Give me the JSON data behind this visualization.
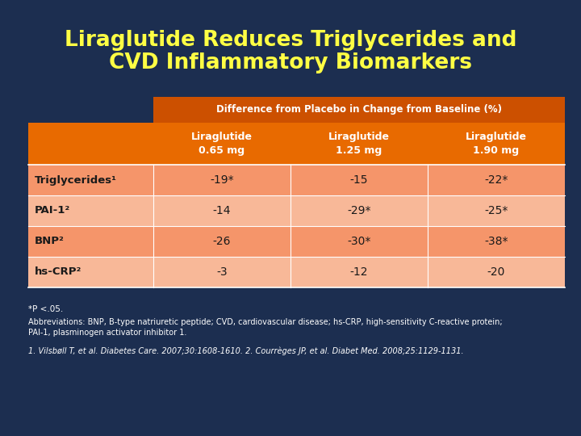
{
  "title_line1": "Liraglutide Reduces Triglycerides and",
  "title_line2": "CVD Inflammatory Biomarkers",
  "title_color": "#FFFF44",
  "bg_color": "#1C2E50",
  "subtitle": "Difference from Placebo in Change from Baseline (%)",
  "col_headers": [
    "Liraglutide\n0.65 mg",
    "Liraglutide\n1.25 mg",
    "Liraglutide\n1.90 mg"
  ],
  "row_labels": [
    "Triglycerides¹",
    "PAI-1²",
    "BNP²",
    "hs-CRP²"
  ],
  "data": [
    [
      "-19*",
      "-15",
      "-22*"
    ],
    [
      "-14",
      "-29*",
      "-25*"
    ],
    [
      "-26",
      "-30*",
      "-38*"
    ],
    [
      "-3",
      "-12",
      "-20"
    ]
  ],
  "header_bg": "#E86A00",
  "row_label_bg_odd": "#F5956A",
  "row_label_bg_even": "#F8B898",
  "row_data_bg_odd": "#F5956A",
  "row_data_bg_even": "#F8B898",
  "header_text_color": "#FFFFFF",
  "row_label_text_color": "#1A1A1A",
  "data_text_color": "#1A1A1A",
  "subtitle_bg": "#CC5000",
  "footnote1": "*P <.05.",
  "footnote2": "Abbreviations: BNP, B-type natriuretic peptide; CVD, cardiovascular disease; hs-CRP, high-sensitivity C-reactive protein;",
  "footnote2b": "PAI-1, plasminogen activator inhibitor 1.",
  "footnote3": "1. Vilsbøll T, et al. Diabetes Care. 2007;30:1608-1610. 2. Courrèges JP, et al. Diabet Med. 2008;25:1129-1131.",
  "footnote_color": "#FFFFFF"
}
